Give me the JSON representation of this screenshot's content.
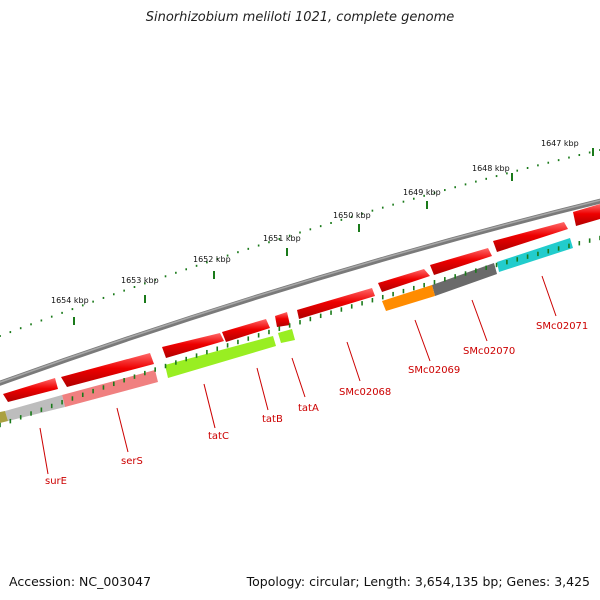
{
  "title": "Sinorhizobium meliloti 1021, complete genome",
  "footer": {
    "accession": "Accession: NC_003047",
    "summary": "Topology: circular; Length: 3,654,135 bp; Genes: 3,425"
  },
  "colors": {
    "backbone": "#808080",
    "red": "#ee0000",
    "tick": "#1a7a1a",
    "label": "#cc0000"
  },
  "scale": {
    "unit": "kbp",
    "ticks": [
      {
        "label": "1647 kbp"
      },
      {
        "label": "1648 kbp"
      },
      {
        "label": "1649 kbp"
      },
      {
        "label": "1650 kbp"
      },
      {
        "label": "1651 kbp"
      },
      {
        "label": "1652 kbp"
      },
      {
        "label": "1653 kbp"
      },
      {
        "label": "1654 kbp"
      }
    ]
  },
  "labels": [
    {
      "text": "surE"
    },
    {
      "text": "serS"
    },
    {
      "text": "tatC"
    },
    {
      "text": "tatB"
    },
    {
      "text": "tatA"
    },
    {
      "text": "SMc02068"
    },
    {
      "text": "SMc02069"
    },
    {
      "text": "SMc02070"
    },
    {
      "text": "SMc02071"
    }
  ]
}
